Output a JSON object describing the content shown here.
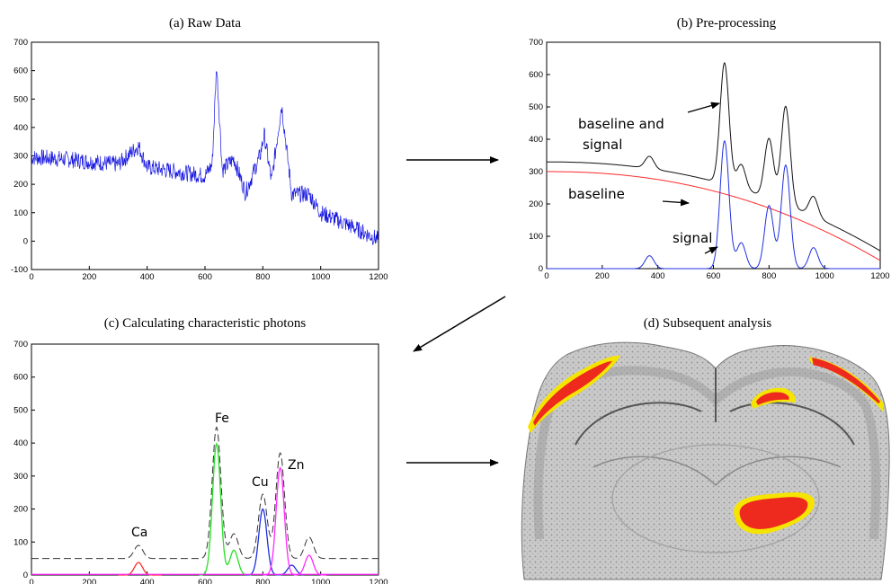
{
  "panels": {
    "a": {
      "title": "(a)  Raw Data"
    },
    "b": {
      "title": "(b)  Pre-processing"
    },
    "c": {
      "title": "(c)  Calculating characteristic photons"
    },
    "d": {
      "title": "(d)  Subsequent analysis"
    }
  },
  "annotations": {
    "b": {
      "baseline_and_signal_1": "baseline and",
      "baseline_and_signal_2": "signal",
      "baseline": "baseline",
      "signal": "signal"
    },
    "c": {
      "ca": "Ca",
      "fe": "Fe",
      "cu": "Cu",
      "zn": "Zn"
    }
  },
  "colors": {
    "raw": "#1515e0",
    "signal": "#1f2fe0",
    "baseline": "#ff2a2a",
    "total": "#111111",
    "ca": "#ff2a2a",
    "fe": "#27e027",
    "cu": "#1f2fe0",
    "zn": "#ff2aff",
    "dashed": "#333333",
    "heat_outer": "#f5e400",
    "heat_inner": "#ee2a1f"
  },
  "chart_data": [
    {
      "id": "a",
      "type": "line",
      "title": "(a)  Raw Data",
      "xlabel": "",
      "ylabel": "",
      "xlim": [
        0,
        1200
      ],
      "ylim": [
        -100,
        700
      ],
      "xticks": [
        0,
        200,
        400,
        600,
        800,
        1000,
        1200
      ],
      "yticks": [
        -100,
        0,
        100,
        200,
        300,
        400,
        500,
        600,
        700
      ],
      "series": [
        {
          "color": "#1515e0",
          "x": [
            0,
            100,
            200,
            300,
            370,
            400,
            500,
            600,
            625,
            640,
            660,
            700,
            740,
            790,
            805,
            830,
            865,
            900,
            960,
            1000,
            1100,
            1200
          ],
          "y": [
            295,
            290,
            280,
            270,
            335,
            260,
            245,
            230,
            270,
            620,
            250,
            290,
            170,
            300,
            375,
            210,
            480,
            165,
            165,
            100,
            55,
            5
          ]
        }
      ]
    },
    {
      "id": "b",
      "type": "line",
      "title": "(b)  Pre-processing",
      "xlabel": "",
      "ylabel": "",
      "xlim": [
        0,
        1200
      ],
      "ylim": [
        0,
        700
      ],
      "xticks": [
        0,
        200,
        400,
        600,
        800,
        1000,
        1200
      ],
      "yticks": [
        0,
        100,
        200,
        300,
        400,
        500,
        600,
        700
      ],
      "series": [
        {
          "color": "#111111",
          "x": [
            0,
            370,
            640,
            700,
            800,
            860,
            960,
            1200
          ],
          "y": [
            330,
            330,
            630,
            290,
            375,
            475,
            180,
            30
          ]
        },
        {
          "color": "#ff2a2a",
          "x": [
            0,
            300,
            600,
            900,
            1200
          ],
          "y": [
            300,
            280,
            220,
            125,
            25
          ]
        },
        {
          "color": "#1f2fe0",
          "x": [
            370,
            640,
            700,
            800,
            860,
            960
          ],
          "y": [
            40,
            395,
            80,
            195,
            320,
            65
          ]
        }
      ]
    },
    {
      "id": "c",
      "type": "line",
      "title": "(c)  Calculating characteristic photons",
      "xlabel": "",
      "ylabel": "",
      "xlim": [
        0,
        1200
      ],
      "ylim": [
        0,
        700
      ],
      "xticks": [
        0,
        200,
        400,
        600,
        800,
        1000,
        1200
      ],
      "yticks": [
        0,
        100,
        200,
        300,
        400,
        500,
        600,
        700
      ],
      "series": [
        {
          "color": "#ff2a2a",
          "x": [
            370
          ],
          "y": [
            38
          ]
        },
        {
          "color": "#27e027",
          "x": [
            640,
            700
          ],
          "y": [
            398,
            75
          ]
        },
        {
          "color": "#1f2fe0",
          "x": [
            800,
            900
          ],
          "y": [
            200,
            30
          ]
        },
        {
          "color": "#ff2aff",
          "x": [
            860,
            960
          ],
          "y": [
            325,
            60
          ]
        },
        {
          "color": "#333333",
          "x": [
            370,
            640,
            700,
            800,
            860,
            960
          ],
          "y": [
            90,
            448,
            125,
            245,
            370,
            115
          ]
        }
      ]
    }
  ]
}
